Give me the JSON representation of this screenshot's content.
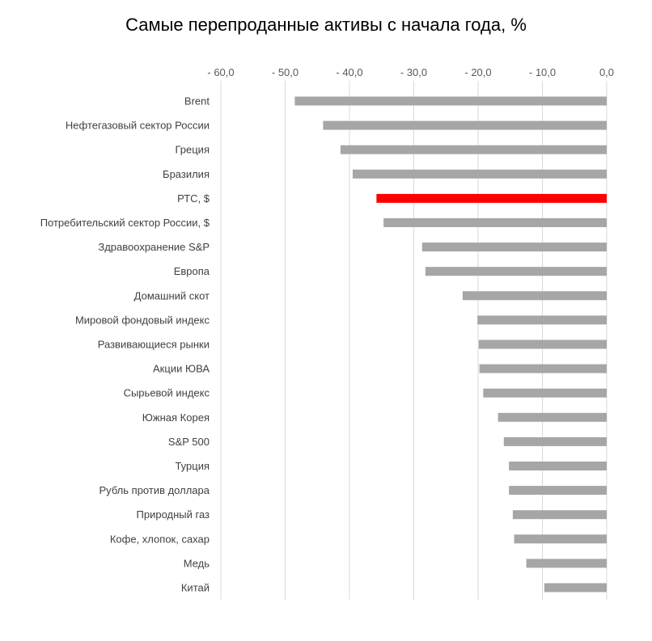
{
  "chart_data": {
    "type": "bar",
    "orientation": "horizontal",
    "title": "Самые перепроданные активы с начала года, %",
    "xlabel": "",
    "ylabel": "",
    "xlim": [
      -60,
      0
    ],
    "x_ticks": [
      -60,
      -50,
      -40,
      -30,
      -20,
      -10,
      0
    ],
    "x_tick_labels": [
      "- 60,0",
      "- 50,0",
      "- 40,0",
      "- 30,0",
      "- 20,0",
      "- 10,0",
      "0,0"
    ],
    "grid": true,
    "categories": [
      "Brent",
      "Нефтегазовый сектор России",
      "Греция",
      "Бразилия",
      "РТС, $",
      "Потребительский сектор России, $",
      "Здравоохранение S&P",
      "Европа",
      "Домашний скот",
      "Мировой фондовый индекс",
      "Развивающиеся рынки",
      "Акции ЮВА",
      "Сырьевой индекс",
      "Южная Корея",
      "S&P 500",
      "Турция",
      "Рубль против доллара",
      "Природный газ",
      "Кофе, хлопок,  сахар",
      "Медь",
      "Китай"
    ],
    "values": [
      -48.5,
      -44.1,
      -41.4,
      -39.5,
      -35.8,
      -34.7,
      -28.7,
      -28.2,
      -22.4,
      -20.1,
      -19.9,
      -19.8,
      -19.2,
      -16.9,
      -16.0,
      -15.2,
      -15.2,
      -14.6,
      -14.4,
      -12.5,
      -9.7
    ],
    "colors": {
      "default": "#a6a6a6",
      "highlight": "#ff0000",
      "grid": "#d9d9d9"
    },
    "highlight_category": "РТС, $"
  }
}
